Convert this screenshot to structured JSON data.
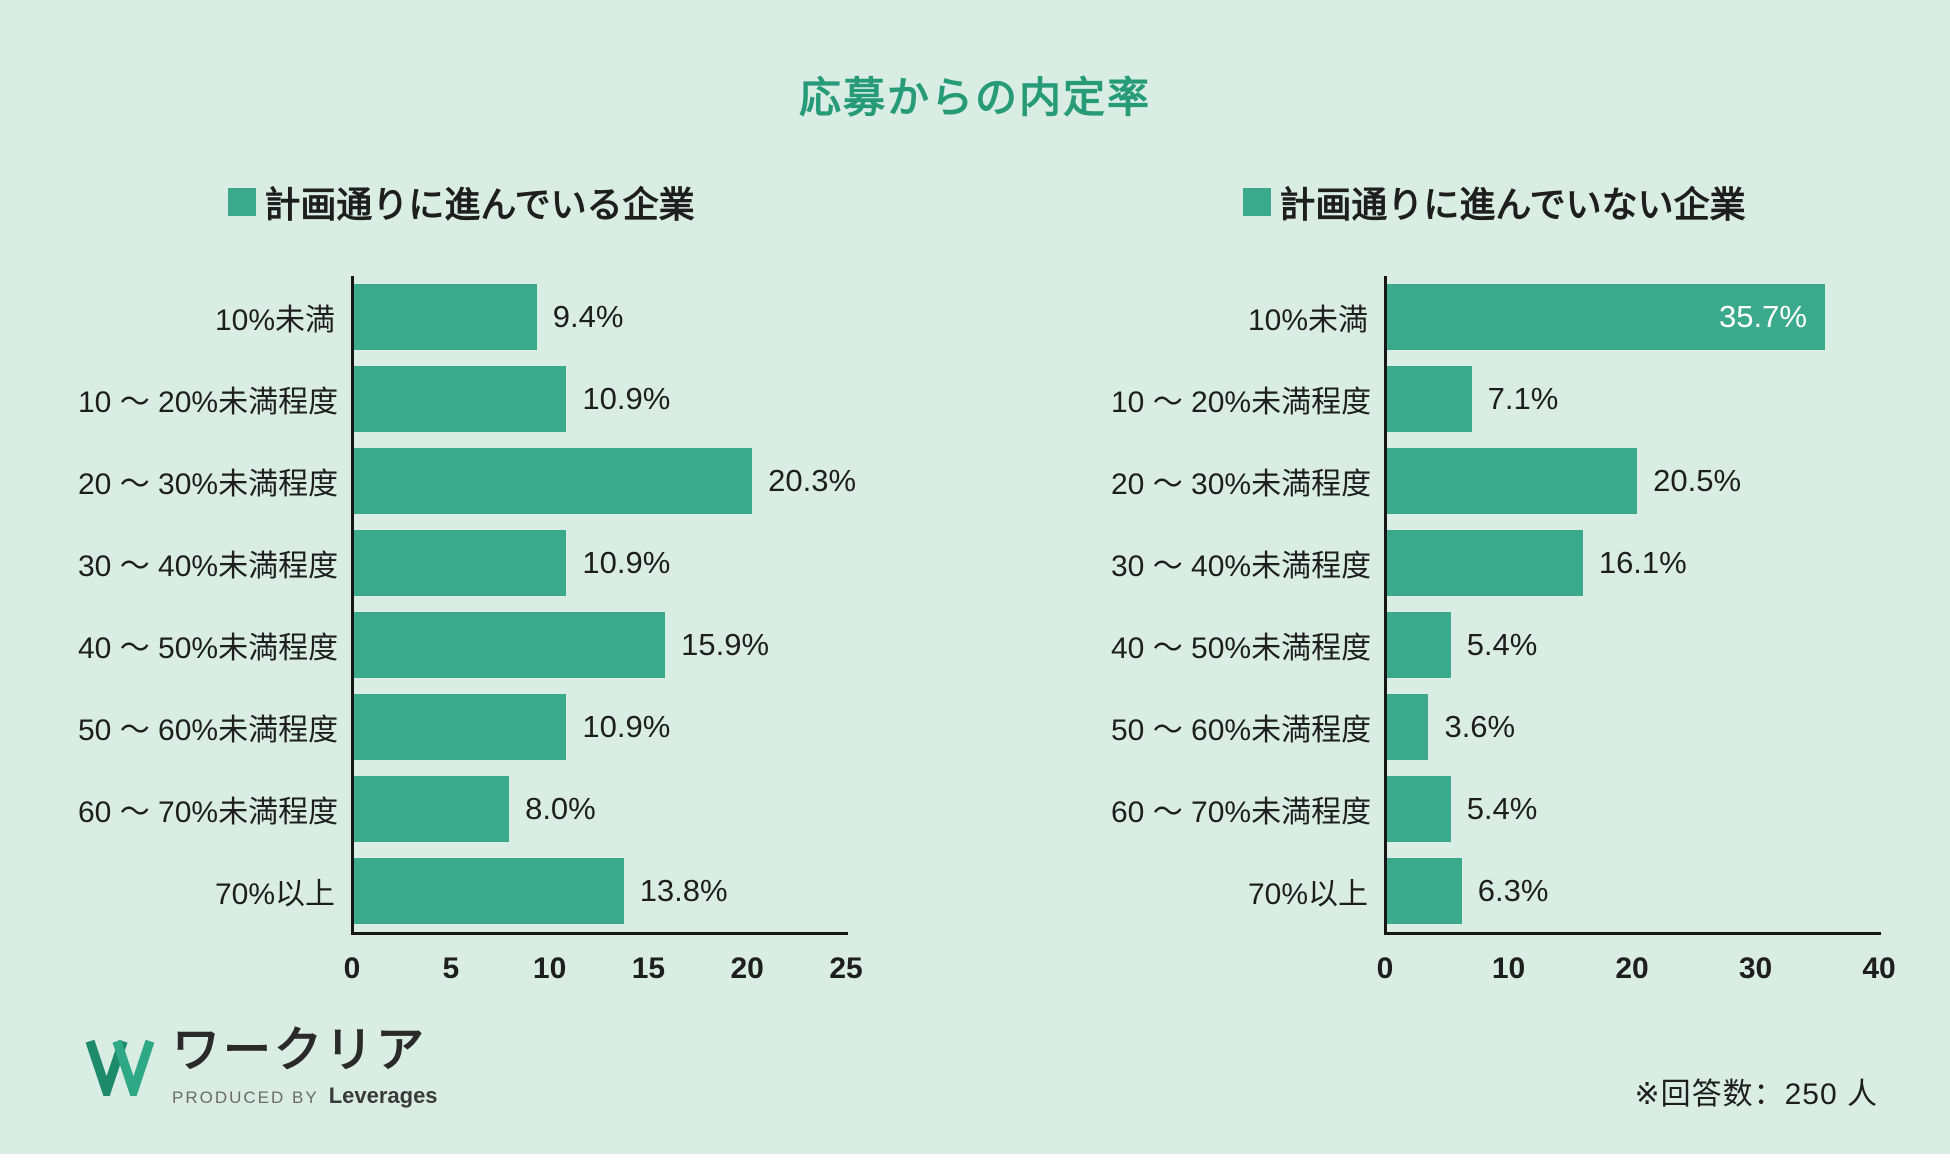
{
  "page": {
    "title": "応募からの内定率",
    "footnote": "※回答数：250 人"
  },
  "logo": {
    "name": "ワークリア",
    "produced_by": "PRODUCED BY",
    "company": "Leverages"
  },
  "colors": {
    "background": "#d9ede5",
    "bar": "#3aa98c",
    "title": "#279b78",
    "text": "#1e1e1e",
    "axis": "#161616",
    "value_inside": "#ffffff"
  },
  "chart_data": [
    {
      "type": "bar",
      "orientation": "horizontal",
      "title": "計画通りに進んでいる企業",
      "legend_position": "top",
      "grid": false,
      "categories": [
        "10%未満",
        "10 ～ 20%未満程度",
        "20 ～ 30%未満程度",
        "30 ～ 40%未満程度",
        "40 ～ 50%未満程度",
        "50 ～ 60%未満程度",
        "60 ～ 70%未満程度",
        "70%以上"
      ],
      "values": [
        9.4,
        10.9,
        20.3,
        10.9,
        15.9,
        10.9,
        8.0,
        13.8
      ],
      "labels": [
        "9.4%",
        "10.9%",
        "20.3%",
        "10.9%",
        "15.9%",
        "10.9%",
        "8.0%",
        "13.8%"
      ],
      "xlabel": "",
      "ylabel": "",
      "xlim": [
        0,
        25
      ],
      "xticks": [
        0,
        5,
        10,
        15,
        20,
        25
      ]
    },
    {
      "type": "bar",
      "orientation": "horizontal",
      "title": "計画通りに進んでいない企業",
      "legend_position": "top",
      "grid": false,
      "categories": [
        "10%未満",
        "10 ～ 20%未満程度",
        "20 ～ 30%未満程度",
        "30 ～ 40%未満程度",
        "40 ～ 50%未満程度",
        "50 ～ 60%未満程度",
        "60 ～ 70%未満程度",
        "70%以上"
      ],
      "values": [
        35.7,
        7.1,
        20.5,
        16.1,
        5.4,
        3.6,
        5.4,
        6.3
      ],
      "labels": [
        "35.7%",
        "7.1%",
        "20.5%",
        "16.1%",
        "5.4%",
        "3.6%",
        "5.4%",
        "6.3%"
      ],
      "xlabel": "",
      "ylabel": "",
      "xlim": [
        0,
        40
      ],
      "xticks": [
        0,
        10,
        20,
        30,
        40
      ]
    }
  ]
}
